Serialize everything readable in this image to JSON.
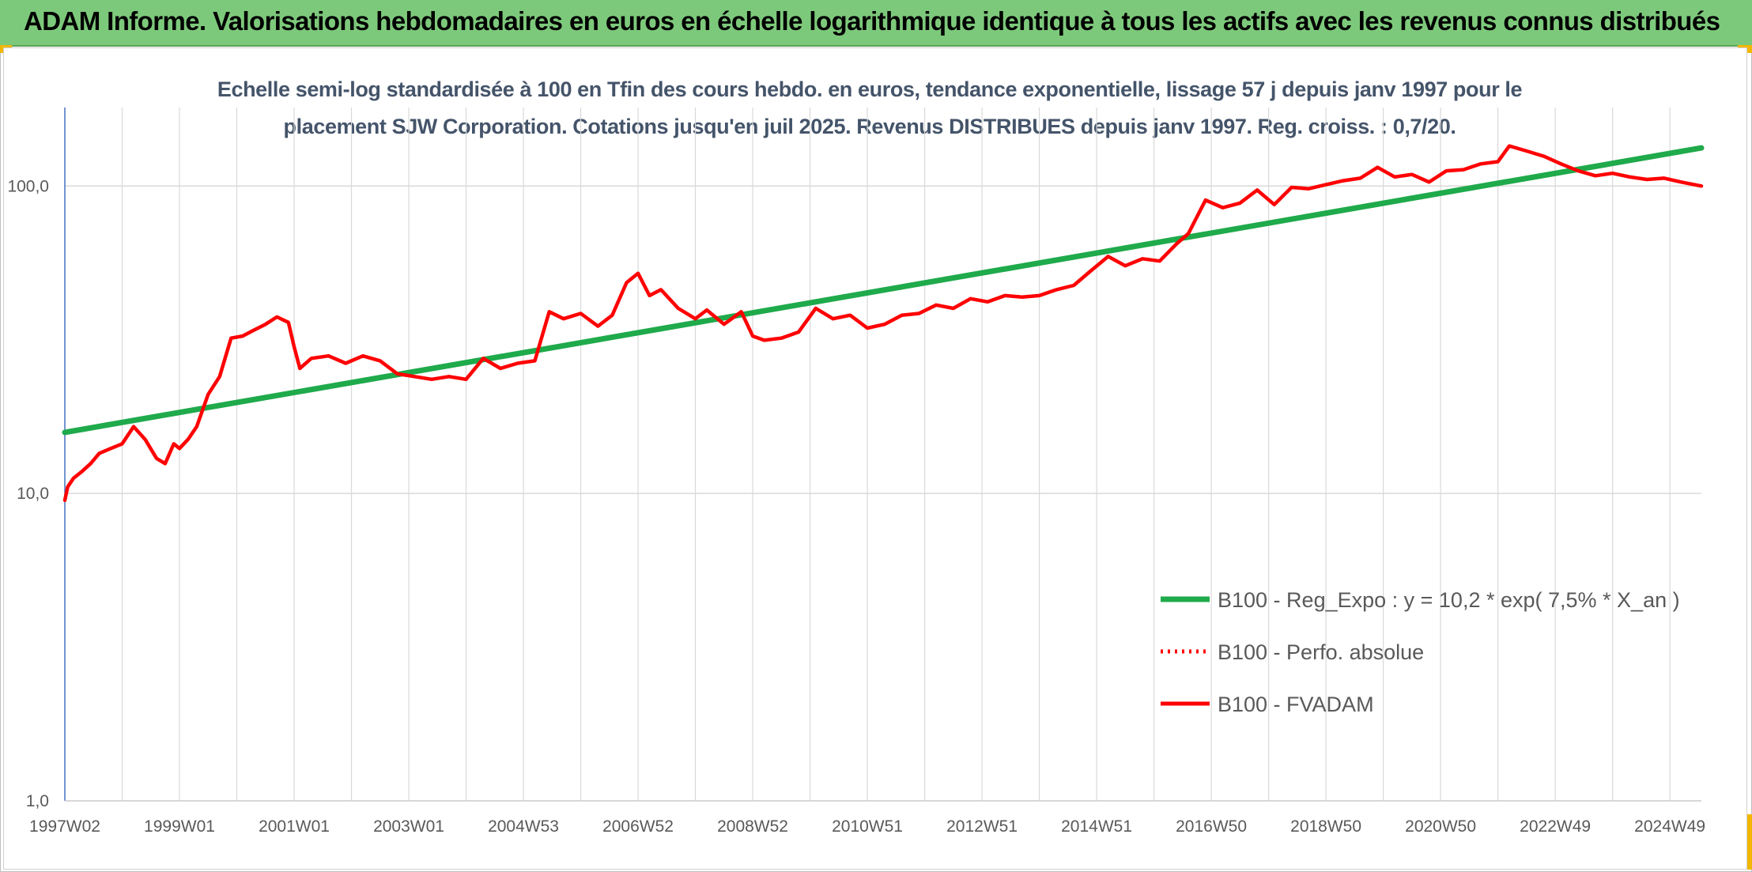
{
  "header": {
    "title": "ADAM Informe. Valorisations hebdomadaires en euros en échelle logarithmique identique à tous les actifs avec les revenus connus distribués"
  },
  "colors": {
    "header_bg": "#7dc97b",
    "regression": "#1faa4b",
    "series_red": "#ff0000",
    "title_text": "#44546a"
  },
  "chart_data": {
    "type": "line",
    "title": "Echelle semi-log standardisée à 100 en Tfin des cours hebdo. en euros, tendance exponentielle, lissage 57 j depuis janv 1997 pour le placement SJW Corporation. Cotations jusqu'en juil 2025. Revenus DISTRIBUES depuis janv 1997. Reg. croiss. : 0,7/20.",
    "title_lines": [
      "Echelle semi-log standardisée à 100 en Tfin des cours hebdo. en euros, tendance exponentielle, lissage 57 j depuis janv 1997 pour le",
      "placement SJW Corporation. Cotations jusqu'en juil 2025. Revenus DISTRIBUES depuis janv 1997. Reg. croiss. : 0,7/20."
    ],
    "yscale": "log",
    "ylim": [
      1,
      180
    ],
    "xlim": [
      1997.0,
      2025.55
    ],
    "y_ticks": [
      {
        "value": 1,
        "label": "1,0"
      },
      {
        "value": 10,
        "label": "10,0"
      },
      {
        "value": 100,
        "label": "100,0"
      }
    ],
    "x_ticks": [
      {
        "value": 1997.0,
        "label": "1997W02"
      },
      {
        "value": 1999.0,
        "label": "1999W01"
      },
      {
        "value": 2001.0,
        "label": "2001W01"
      },
      {
        "value": 2003.0,
        "label": "2003W01"
      },
      {
        "value": 2005.0,
        "label": "2004W53"
      },
      {
        "value": 2007.0,
        "label": "2006W52"
      },
      {
        "value": 2009.0,
        "label": "2008W52"
      },
      {
        "value": 2011.0,
        "label": "2010W51"
      },
      {
        "value": 2013.0,
        "label": "2012W51"
      },
      {
        "value": 2015.0,
        "label": "2014W51"
      },
      {
        "value": 2017.0,
        "label": "2016W50"
      },
      {
        "value": 2019.0,
        "label": "2018W50"
      },
      {
        "value": 2021.0,
        "label": "2020W50"
      },
      {
        "value": 2023.0,
        "label": "2022W49"
      },
      {
        "value": 2025.0,
        "label": "2024W49"
      }
    ],
    "grid": true,
    "legend_position": "bottom-right",
    "series": [
      {
        "name": "B100 - Reg_Expo : y = 10,2 * exp( 7,5% *  X_an )",
        "color": "#1faa4b",
        "style": "solid",
        "x": [
          1997.0,
          2025.55
        ],
        "y": [
          15.8,
          133
        ]
      },
      {
        "name": "B100 - Perfo. absolue",
        "color": "#ff0000",
        "style": "dotted",
        "x": [],
        "y": []
      },
      {
        "name": "B100 - FVADAM",
        "color": "#ff0000",
        "style": "solid",
        "x": [
          1997.0,
          1997.05,
          1997.15,
          1997.3,
          1997.45,
          1997.6,
          1997.8,
          1998.0,
          1998.2,
          1998.4,
          1998.6,
          1998.75,
          1998.9,
          1999.0,
          1999.15,
          1999.3,
          1999.5,
          1999.7,
          1999.9,
          2000.1,
          2000.3,
          2000.5,
          2000.7,
          2000.9,
          2001.0,
          2001.1,
          2001.3,
          2001.6,
          2001.9,
          2002.2,
          2002.5,
          2002.8,
          2003.1,
          2003.4,
          2003.7,
          2004.0,
          2004.3,
          2004.6,
          2004.9,
          2005.2,
          2005.45,
          2005.7,
          2006.0,
          2006.3,
          2006.55,
          2006.8,
          2007.0,
          2007.2,
          2007.4,
          2007.7,
          2008.0,
          2008.2,
          2008.5,
          2008.8,
          2009.0,
          2009.2,
          2009.5,
          2009.8,
          2010.1,
          2010.4,
          2010.7,
          2011.0,
          2011.3,
          2011.6,
          2011.9,
          2012.2,
          2012.5,
          2012.8,
          2013.1,
          2013.4,
          2013.7,
          2014.0,
          2014.3,
          2014.6,
          2014.9,
          2015.2,
          2015.5,
          2015.8,
          2016.1,
          2016.4,
          2016.6,
          2016.9,
          2017.2,
          2017.5,
          2017.8,
          2018.1,
          2018.4,
          2018.7,
          2019.0,
          2019.3,
          2019.6,
          2019.9,
          2020.2,
          2020.5,
          2020.8,
          2021.1,
          2021.4,
          2021.7,
          2022.0,
          2022.2,
          2022.5,
          2022.8,
          2023.1,
          2023.4,
          2023.7,
          2024.0,
          2024.3,
          2024.6,
          2024.9,
          2025.2,
          2025.55
        ],
        "y": [
          9.5,
          10.5,
          11.2,
          11.8,
          12.5,
          13.5,
          14.0,
          14.5,
          16.5,
          15.0,
          13.0,
          12.5,
          14.5,
          14.0,
          15.0,
          16.5,
          21.0,
          24.0,
          32.0,
          32.5,
          34.0,
          35.5,
          37.5,
          36.0,
          30.0,
          25.5,
          27.5,
          28.0,
          26.5,
          28.0,
          27.0,
          24.5,
          24.0,
          23.5,
          24.0,
          23.5,
          27.5,
          25.5,
          26.5,
          27.0,
          39.0,
          37.0,
          38.5,
          35.0,
          38.0,
          48.5,
          52.0,
          44.0,
          46.0,
          40.0,
          37.0,
          39.5,
          35.5,
          39.0,
          32.5,
          31.5,
          32.0,
          33.5,
          40.0,
          37.0,
          38.0,
          34.5,
          35.5,
          38.0,
          38.5,
          41.0,
          40.0,
          43.0,
          42.0,
          44.0,
          43.5,
          44.0,
          46.0,
          47.5,
          53.0,
          59.0,
          55.0,
          58.0,
          57.0,
          65.0,
          70.0,
          90.0,
          85.0,
          88.0,
          97.0,
          87.0,
          99.0,
          98.0,
          101.0,
          104.0,
          106.0,
          115.0,
          107.0,
          109.0,
          103.0,
          112.0,
          113.0,
          118.0,
          120.0,
          135.0,
          130.0,
          125.0,
          118.0,
          112.0,
          108.0,
          110.0,
          107.0,
          105.0,
          106.0,
          103.0,
          100.0
        ]
      }
    ]
  }
}
